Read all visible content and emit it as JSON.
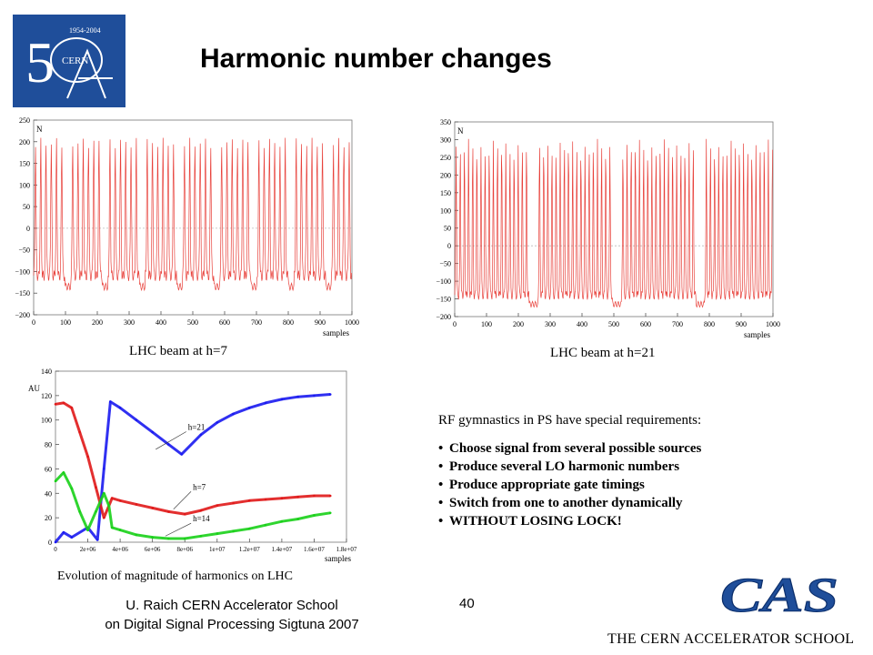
{
  "slide": {
    "title": "Harmonic number changes",
    "logo_text": "CERN",
    "logo_years": "1954-2004",
    "footer_line1": "U. Raich  CERN Accelerator School",
    "footer_line2": "on Digital Signal Processing  Sigtuna 2007",
    "slide_number": "40",
    "cas_logo": "CAS",
    "cas_name": "THE CERN ACCELERATOR SCHOOL"
  },
  "bullets": {
    "heading": "RF gymnastics in PS have special requirements:",
    "items": [
      "Choose signal from several possible sources",
      "Produce several LO harmonic numbers",
      "Produce appropriate gate timings",
      "Switch from one to another dynamically",
      "WITHOUT LOSING LOCK!"
    ]
  },
  "colors": {
    "trace": "#e8403a",
    "blue": "#1a1af0",
    "red": "#e01818",
    "green": "#18d018",
    "logo": "#1f4e9a"
  },
  "chart_data": [
    {
      "type": "line",
      "caption": "LHC beam at h=7",
      "ylabel": "N",
      "xlabel": "samples",
      "xlim": [
        0,
        1000
      ],
      "ylim": [
        -200,
        250
      ],
      "xticks": [
        0,
        100,
        200,
        300,
        400,
        500,
        600,
        700,
        800,
        900,
        1000
      ],
      "yticks": [
        -200,
        -150,
        -100,
        -50,
        0,
        50,
        100,
        150,
        200,
        250
      ],
      "ytick_labels": [
        "−200",
        "−150",
        "−100",
        "−50",
        "0",
        "50",
        "100",
        "150",
        "200",
        "250"
      ],
      "harmonic": 7,
      "bunches_per_group": 6,
      "group_period": 117,
      "spike_period": 16.5,
      "peak": 200,
      "trough": -110
    },
    {
      "type": "line",
      "caption": "LHC beam at h=21",
      "ylabel": "N",
      "xlabel": "samples",
      "xlim": [
        0,
        1000
      ],
      "ylim": [
        -200,
        350
      ],
      "xticks": [
        0,
        100,
        200,
        300,
        400,
        500,
        600,
        700,
        800,
        900,
        1000
      ],
      "yticks": [
        -200,
        -150,
        -100,
        -50,
        0,
        50,
        100,
        150,
        200,
        250,
        300,
        350
      ],
      "ytick_labels": [
        "−200",
        "−150",
        "−100",
        "−50",
        "0",
        "50",
        "100",
        "150",
        "200",
        "250",
        "300",
        "350"
      ],
      "harmonic": 21,
      "bunches_per_group": 18,
      "group_period": 262,
      "spike_period": 13,
      "peak": 290,
      "trough": -140
    },
    {
      "type": "line",
      "caption": "Evolution of magnitude of harmonics on LHC",
      "ylabel": "AU",
      "xlabel": "samples",
      "xlim": [
        0,
        18000000
      ],
      "ylim": [
        0,
        140
      ],
      "xticks": [
        0,
        2000000,
        4000000,
        6000000,
        8000000,
        10000000,
        12000000,
        14000000,
        16000000,
        18000000
      ],
      "xtick_labels": [
        "0",
        "2e+06",
        "4e+06",
        "6e+06",
        "8e+06",
        "1e+07",
        "1.2e+07",
        "1.4e+07",
        "1.6e+07",
        "1.8e+07"
      ],
      "yticks": [
        0,
        20,
        40,
        60,
        80,
        100,
        120,
        140
      ],
      "ytick_labels": [
        "0",
        "20",
        "40",
        "60",
        "80",
        "100",
        "120",
        "140"
      ],
      "series": [
        {
          "name": "h=21",
          "color": "#1a1af0",
          "x": [
            0,
            500000,
            1000000,
            2000000,
            2600000,
            3000000,
            3400000,
            4000000,
            5000000,
            6000000,
            7000000,
            7800000,
            9000000,
            10000000,
            11000000,
            12000000,
            13000000,
            14000000,
            15000000,
            16000000,
            17000000
          ],
          "y": [
            0,
            8,
            4,
            12,
            2,
            60,
            115,
            110,
            100,
            90,
            80,
            72,
            88,
            98,
            105,
            110,
            114,
            117,
            119,
            120,
            121
          ]
        },
        {
          "name": "h=7",
          "color": "#e01818",
          "x": [
            0,
            500000,
            1000000,
            1500000,
            2000000,
            2500000,
            3000000,
            3500000,
            4000000,
            5000000,
            6000000,
            7000000,
            8000000,
            9000000,
            10000000,
            11000000,
            12000000,
            13000000,
            14000000,
            15000000,
            16000000,
            17000000
          ],
          "y": [
            113,
            114,
            110,
            90,
            70,
            45,
            20,
            36,
            34,
            31,
            28,
            25,
            23,
            26,
            30,
            32,
            34,
            35,
            36,
            37,
            38,
            38
          ]
        },
        {
          "name": "h=14",
          "color": "#18d018",
          "x": [
            0,
            500000,
            1000000,
            1500000,
            2000000,
            2500000,
            3000000,
            3300000,
            3500000,
            4000000,
            5000000,
            6000000,
            7000000,
            8000000,
            9000000,
            10000000,
            11000000,
            12000000,
            13000000,
            14000000,
            15000000,
            16000000,
            17000000
          ],
          "y": [
            50,
            57,
            44,
            25,
            10,
            25,
            40,
            30,
            12,
            10,
            6,
            4,
            3,
            3,
            5,
            7,
            9,
            11,
            14,
            17,
            19,
            22,
            24
          ]
        }
      ]
    }
  ]
}
